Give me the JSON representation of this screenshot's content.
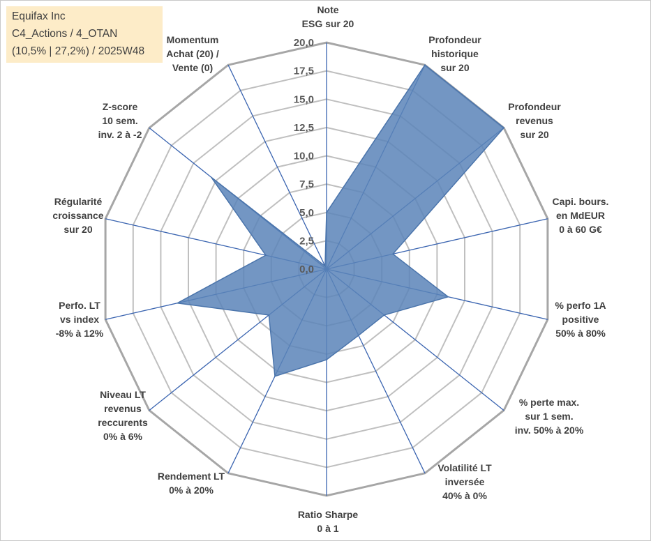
{
  "title_box": {
    "line1": "Equifax Inc",
    "line2": "C4_Actions / 4_OTAN",
    "line3": "(10,5% | 27,2%) / 2025W48"
  },
  "colors": {
    "series_fill": "#5b84b8",
    "series_stroke": "#4a74ab",
    "spoke": "#3a64b0",
    "grid": "#bfbfbf",
    "outer_grid": "#a6a6a6",
    "title_bg": "#fdecc8"
  },
  "chart_data": {
    "type": "radar",
    "rmin": 0,
    "rmax": 20,
    "tick_step": 2.5,
    "tick_labels": [
      "0,0",
      "2,5",
      "5,0",
      "7,5",
      "10,0",
      "12,5",
      "15,0",
      "17,5",
      "20,0"
    ],
    "categories": [
      [
        "Note",
        "ESG sur 20"
      ],
      [
        "Profondeur",
        "historique",
        "sur 20"
      ],
      [
        "Profondeur",
        "revenus",
        "sur 20"
      ],
      [
        "Capi. bours.",
        "en MdEUR",
        "0 à 60 G€"
      ],
      [
        "% perfo 1A",
        "positive",
        "50% à 80%"
      ],
      [
        "% perte max.",
        "sur 1 sem.",
        "inv. 50% à 20%"
      ],
      [
        "Volatilité LT",
        "inversée",
        "40% à 0%"
      ],
      [
        "Ratio Sharpe",
        "0 à 1"
      ],
      [
        "Rendement LT",
        "0% à 20%"
      ],
      [
        "Niveau LT",
        "revenus",
        "reccurents",
        "0% à 6%"
      ],
      [
        "Perfo. LT",
        "vs index",
        "-8% à 12%"
      ],
      [
        "Régularité",
        "croissance",
        "sur 20"
      ],
      [
        "Z-score",
        "10 sem.",
        "inv. 2 à -2"
      ],
      [
        "Momentum",
        "Achat (20) /",
        "Vente (0)"
      ]
    ],
    "series": [
      {
        "values": [
          5.0,
          20.0,
          20.0,
          6.0,
          11.0,
          6.5,
          6.5,
          8.0,
          10.5,
          6.5,
          13.5,
          5.5,
          13.0,
          0.3
        ]
      }
    ],
    "grid": true,
    "legend": "none"
  }
}
